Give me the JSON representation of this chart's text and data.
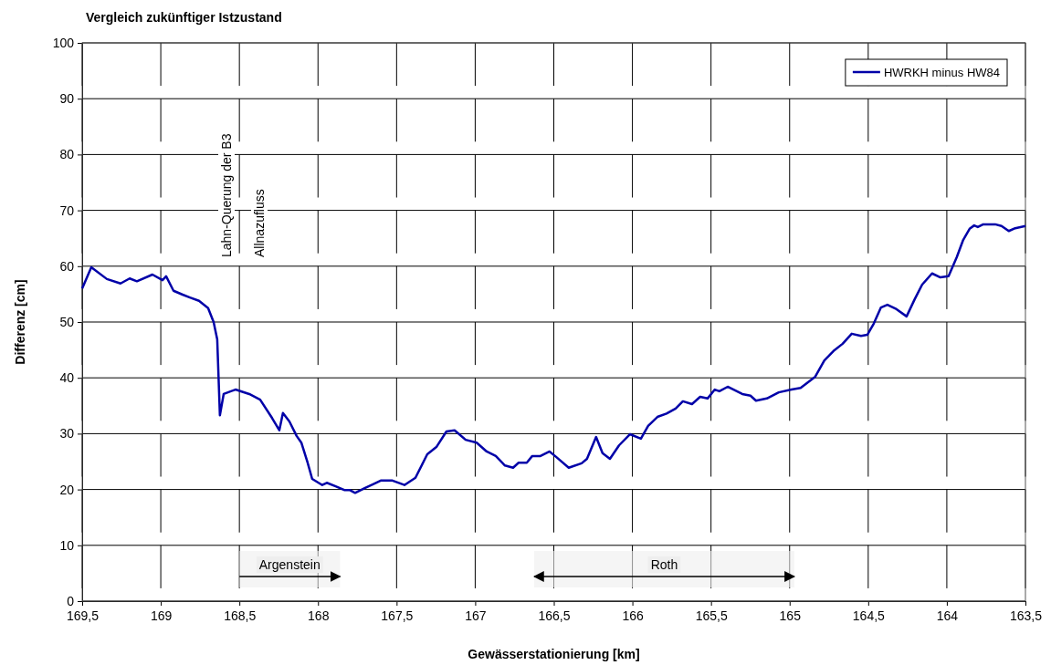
{
  "chart_data": {
    "type": "line",
    "title": "Vergleich zukünftiger Istzustand",
    "xlabel": "Gewässerstationierung [km]",
    "ylabel": "Differenz [cm]",
    "xlim": [
      169.5,
      163.5
    ],
    "xticks": [
      {
        "value": 169.5,
        "label": "169,5"
      },
      169,
      {
        "value": 168.5,
        "label": "168,5"
      },
      168,
      {
        "value": 167.5,
        "label": "167,5"
      },
      167,
      {
        "value": 166.5,
        "label": "166,5"
      },
      166,
      {
        "value": 165.5,
        "label": "165,5"
      },
      165,
      {
        "value": 164.5,
        "label": "164,5"
      },
      164,
      {
        "value": 163.5,
        "label": "163,5"
      }
    ],
    "ylim": [
      0,
      100
    ],
    "yticks": [
      0,
      10,
      20,
      30,
      40,
      50,
      60,
      70,
      80,
      90,
      100
    ],
    "grid": true,
    "legend": "top right",
    "marker": "none",
    "line_style": "solid",
    "series": [
      {
        "name": "HWRKH minus HW84",
        "color": "#0000a8",
        "x": [
          169.5,
          169.442,
          169.343,
          169.256,
          169.198,
          169.152,
          169.053,
          168.989,
          168.966,
          168.919,
          168.861,
          168.815,
          168.757,
          168.699,
          168.664,
          168.641,
          168.624,
          168.6,
          168.525,
          168.437,
          168.368,
          168.292,
          168.246,
          168.223,
          168.182,
          168.136,
          168.106,
          168.066,
          168.037,
          167.973,
          167.944,
          167.891,
          167.833,
          167.799,
          167.764,
          167.7,
          167.653,
          167.601,
          167.526,
          167.45,
          167.38,
          167.305,
          167.247,
          167.183,
          167.131,
          167.061,
          166.991,
          166.927,
          166.869,
          166.811,
          166.759,
          166.724,
          166.672,
          166.637,
          166.585,
          166.527,
          166.492,
          166.405,
          166.323,
          166.289,
          166.231,
          166.19,
          166.143,
          166.085,
          166.016,
          165.946,
          165.9,
          165.841,
          165.783,
          165.725,
          165.679,
          165.621,
          165.569,
          165.522,
          165.476,
          165.447,
          165.394,
          165.301,
          165.249,
          165.214,
          165.145,
          165.069,
          164.988,
          164.93,
          164.837,
          164.779,
          164.721,
          164.663,
          164.605,
          164.546,
          164.506,
          164.465,
          164.419,
          164.378,
          164.32,
          164.256,
          164.204,
          164.157,
          164.094,
          164.041,
          163.989,
          163.937,
          163.896,
          163.855,
          163.826,
          163.803,
          163.768,
          163.693,
          163.652,
          163.606,
          163.565,
          163.5
        ],
        "values": [
          56.0,
          59.8,
          57.7,
          56.9,
          57.8,
          57.3,
          58.5,
          57.5,
          58.2,
          55.6,
          54.9,
          54.4,
          53.8,
          52.5,
          50.0,
          46.9,
          33.3,
          37.1,
          37.9,
          37.1,
          36.1,
          32.8,
          30.6,
          33.7,
          32.2,
          29.6,
          28.4,
          24.8,
          21.9,
          20.8,
          21.2,
          20.6,
          19.9,
          19.9,
          19.4,
          20.3,
          20.9,
          21.6,
          21.6,
          20.8,
          22.1,
          26.3,
          27.6,
          30.4,
          30.6,
          28.9,
          28.4,
          26.8,
          26.0,
          24.3,
          23.9,
          24.8,
          24.8,
          26.0,
          26.0,
          26.8,
          26.0,
          23.9,
          24.7,
          25.5,
          29.4,
          26.5,
          25.5,
          27.9,
          29.9,
          29.1,
          31.4,
          33.0,
          33.6,
          34.5,
          35.8,
          35.3,
          36.6,
          36.3,
          37.9,
          37.6,
          38.4,
          37.1,
          36.8,
          35.9,
          36.3,
          37.4,
          37.9,
          38.2,
          40.2,
          43.1,
          44.8,
          46.1,
          47.9,
          47.5,
          47.7,
          49.7,
          52.6,
          53.1,
          52.3,
          51.0,
          54.1,
          56.7,
          58.7,
          58.0,
          58.2,
          61.6,
          64.7,
          66.7,
          67.3,
          67.0,
          67.5,
          67.5,
          67.2,
          66.3,
          66.8,
          67.2
        ]
      }
    ],
    "annotations": [
      "Lahn-Querung der B3",
      "Allnazufluss"
    ],
    "bands": [
      {
        "axis": "x",
        "from": 168.5,
        "to": 167.86,
        "label": "Argenstein",
        "color": "#eeeeee"
      },
      {
        "axis": "x",
        "from": 166.625,
        "to": 164.97,
        "label": "Roth",
        "color": "#eeeeee"
      }
    ]
  }
}
